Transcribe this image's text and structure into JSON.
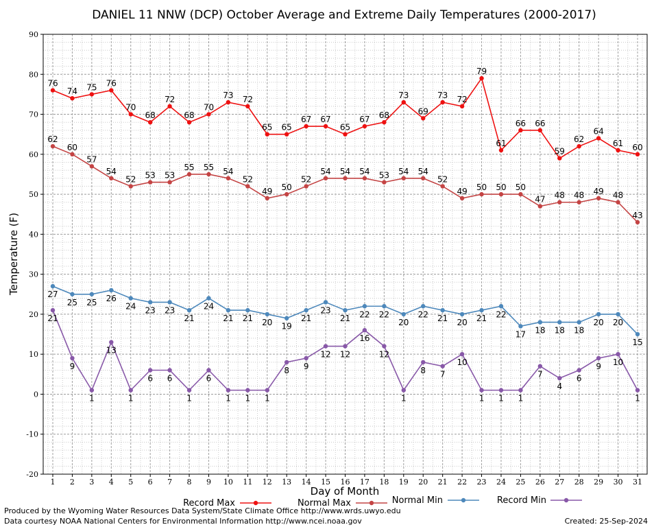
{
  "chart_data": {
    "type": "line",
    "title": "DANIEL 11 NNW (DCP) October Average and Extreme Daily Temperatures (2000-2017)",
    "xlabel": "Day of Month",
    "ylabel": "Temperature (F)",
    "xlim": [
      1,
      31
    ],
    "ylim": [
      -20,
      90
    ],
    "yticks": [
      -20,
      -10,
      0,
      10,
      20,
      30,
      40,
      50,
      60,
      70,
      80,
      90
    ],
    "x": [
      1,
      2,
      3,
      4,
      5,
      6,
      7,
      8,
      9,
      10,
      11,
      12,
      13,
      14,
      15,
      16,
      17,
      18,
      19,
      20,
      21,
      22,
      23,
      24,
      25,
      26,
      27,
      28,
      29,
      30,
      31
    ],
    "grid": true,
    "legend_position": "bottom",
    "series": [
      {
        "name": "Record Max",
        "color": "#ee1111",
        "label_pos": "above",
        "values": [
          76,
          74,
          75,
          76,
          70,
          68,
          72,
          68,
          70,
          73,
          72,
          65,
          65,
          67,
          67,
          65,
          67,
          68,
          73,
          69,
          73,
          72,
          79,
          61,
          66,
          66,
          59,
          62,
          64,
          61,
          60
        ]
      },
      {
        "name": "Normal Max",
        "color": "#c44444",
        "label_pos": "above",
        "values": [
          62,
          60,
          57,
          54,
          52,
          53,
          53,
          55,
          55,
          54,
          52,
          49,
          50,
          52,
          54,
          54,
          54,
          53,
          54,
          54,
          52,
          49,
          50,
          50,
          50,
          47,
          48,
          48,
          49,
          48,
          43
        ]
      },
      {
        "name": "Normal Min",
        "color": "#4d88bb",
        "label_pos": "below",
        "values": [
          27,
          25,
          25,
          26,
          24,
          23,
          23,
          21,
          24,
          21,
          21,
          20,
          19,
          21,
          23,
          21,
          22,
          22,
          20,
          22,
          21,
          20,
          21,
          22,
          17,
          18,
          18,
          18,
          20,
          20,
          15
        ]
      },
      {
        "name": "Record Min",
        "color": "#8858a8",
        "label_pos": "below",
        "values": [
          21,
          9,
          1,
          13,
          1,
          6,
          6,
          1,
          6,
          1,
          1,
          1,
          8,
          9,
          12,
          12,
          16,
          12,
          1,
          8,
          7,
          10,
          1,
          1,
          1,
          7,
          4,
          6,
          9,
          10,
          1
        ]
      }
    ]
  },
  "footer": {
    "produced_by": "Produced by the Wyoming Water Resources Data System/State Climate Office http://www.wrds.uwyo.edu",
    "data_courtesy": "Data courtesy NOAA National Centers for Environmental Information http://www.ncei.noaa.gov",
    "created": "Created:  25-Sep-2024"
  }
}
